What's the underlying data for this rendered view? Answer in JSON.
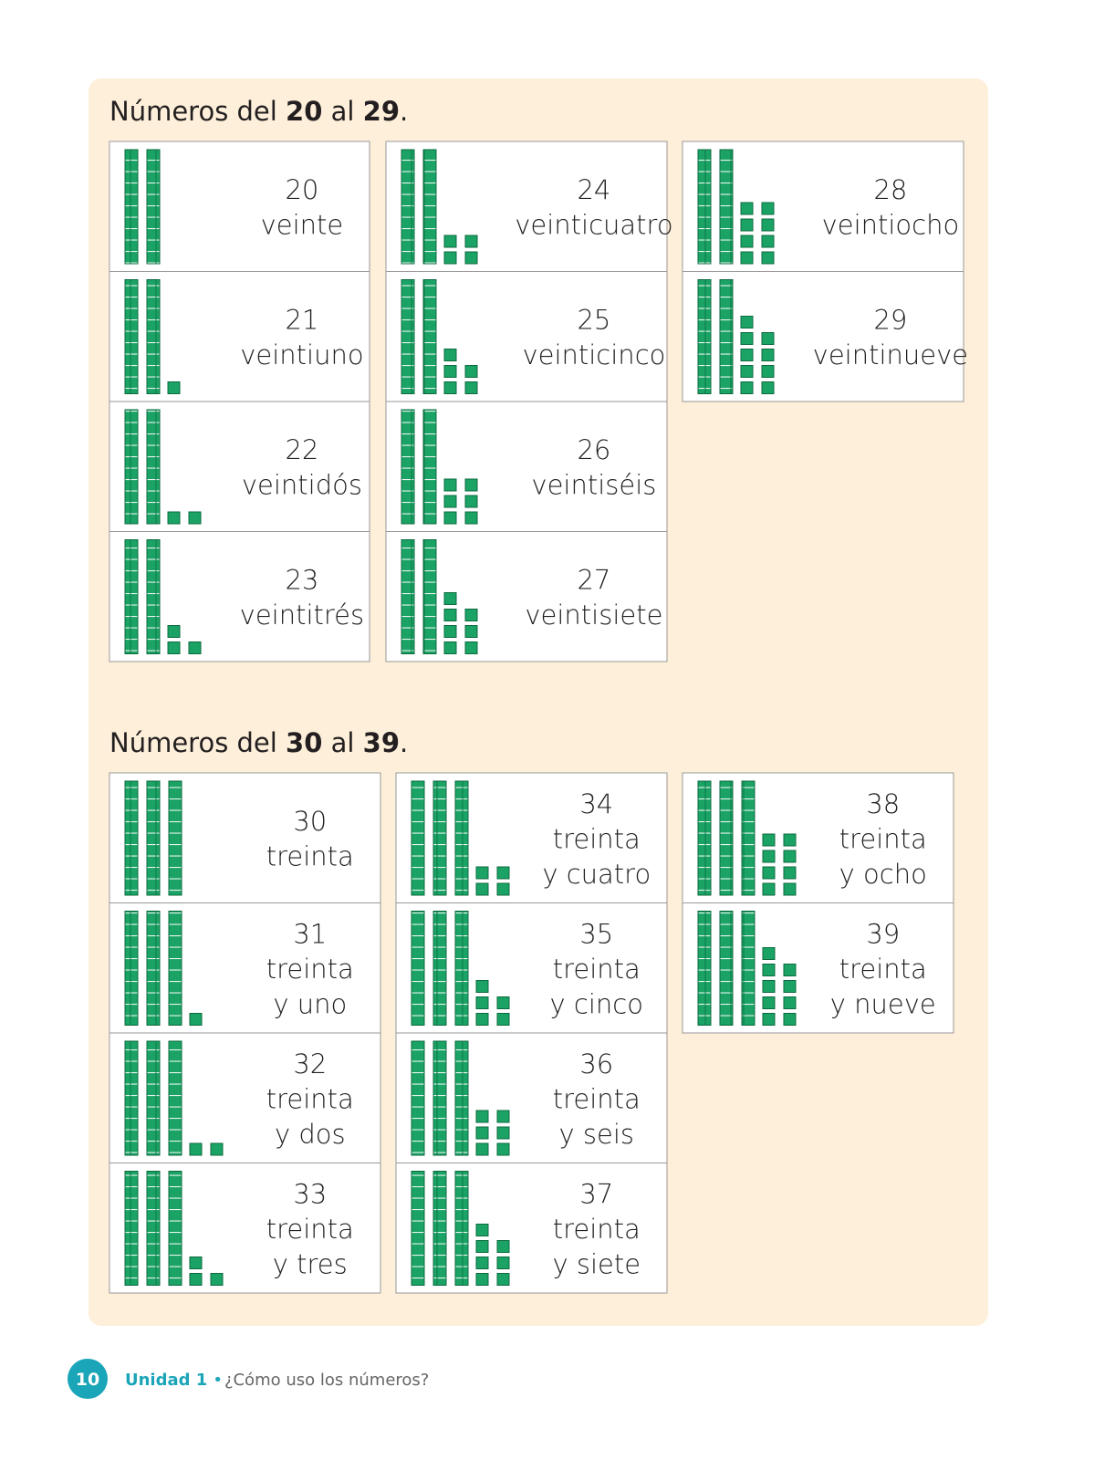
{
  "sections": [
    {
      "heading": {
        "text": "Números del ",
        "from": "20",
        "mid": " al ",
        "to": "29",
        "end": "."
      },
      "columns": [
        [
          {
            "number": "20",
            "words": [
              "veinte"
            ]
          },
          {
            "number": "21",
            "words": [
              "veintiuno"
            ]
          },
          {
            "number": "22",
            "words": [
              "veintidós"
            ]
          },
          {
            "number": "23",
            "words": [
              "veintitrés"
            ]
          }
        ],
        [
          {
            "number": "24",
            "words": [
              "veinticuatro"
            ]
          },
          {
            "number": "25",
            "words": [
              "veinticinco"
            ]
          },
          {
            "number": "26",
            "words": [
              "veintiséis"
            ]
          },
          {
            "number": "27",
            "words": [
              "veintisiete"
            ]
          }
        ],
        [
          {
            "number": "28",
            "words": [
              "veintiocho"
            ]
          },
          {
            "number": "29",
            "words": [
              "veintinueve"
            ]
          }
        ]
      ]
    },
    {
      "heading": {
        "text": "Números del ",
        "from": "30",
        "mid": " al ",
        "to": "39",
        "end": "."
      },
      "columns": [
        [
          {
            "number": "30",
            "words": [
              "treinta"
            ]
          },
          {
            "number": "31",
            "words": [
              "treinta",
              "y uno"
            ]
          },
          {
            "number": "32",
            "words": [
              "treinta",
              "y dos"
            ]
          },
          {
            "number": "33",
            "words": [
              "treinta",
              "y tres"
            ]
          }
        ],
        [
          {
            "number": "34",
            "words": [
              "treinta",
              "y cuatro"
            ]
          },
          {
            "number": "35",
            "words": [
              "treinta",
              "y cinco"
            ]
          },
          {
            "number": "36",
            "words": [
              "treinta",
              "y seis"
            ]
          },
          {
            "number": "37",
            "words": [
              "treinta",
              "y siete"
            ]
          }
        ],
        [
          {
            "number": "38",
            "words": [
              "treinta",
              "y ocho"
            ]
          },
          {
            "number": "39",
            "words": [
              "treinta",
              "y nueve"
            ]
          }
        ]
      ]
    }
  ],
  "footer": {
    "page": "10",
    "unit": "Unidad 1",
    "separator": "•",
    "question": "¿Cómo uso los números?"
  }
}
